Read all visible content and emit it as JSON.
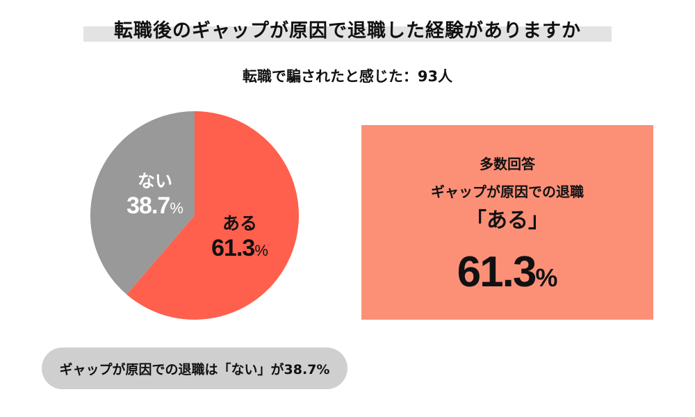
{
  "title": "転職後のギャップが原因で退職した経験がありますか",
  "subtitle": "転職で騙されたと感じた：93人",
  "chart_data": {
    "type": "pie",
    "title": "転職後のギャップが原因で退職した経験がありますか",
    "subtitle": "転職で騙されたと感じた：93人",
    "slices": [
      {
        "label": "ある",
        "value": 61.3,
        "display": "61.3",
        "unit": "%",
        "color": "#fe604d"
      },
      {
        "label": "ない",
        "value": 38.7,
        "display": "38.7",
        "unit": "%",
        "color": "#999999"
      }
    ],
    "start": "12 o'clock",
    "direction": "clockwise"
  },
  "highlight_box": {
    "line1": "多数回答",
    "line2": "ギャップが原因での退職",
    "line3": "「ある」",
    "value": "61.3",
    "unit": "%",
    "color": "#fc9077"
  },
  "footnote": "ギャップが原因での退職は「ない」が38.7%"
}
